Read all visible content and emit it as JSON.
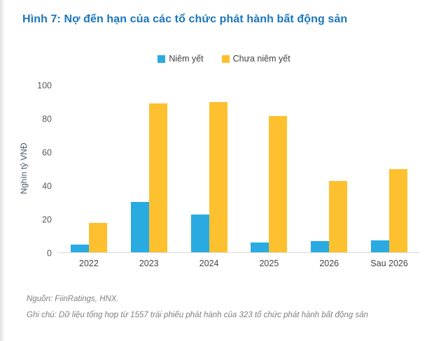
{
  "title": "Hình 7: Nợ đến hạn của các tổ chức phát hành bất động sản",
  "colors": {
    "title": "#1b75bc",
    "listed_series": "#29abe2",
    "unlisted_series": "#fdc02f",
    "axis_line": "#d9d9d9"
  },
  "chart_data": {
    "type": "bar",
    "categories": [
      "2022",
      "2023",
      "2024",
      "2025",
      "2026",
      "Sau 2026"
    ],
    "series": [
      {
        "name": "Niêm yết",
        "color": "#29abe2",
        "values": [
          4.5,
          30,
          22.5,
          6,
          6.5,
          7
        ]
      },
      {
        "name": "Chưa niêm yết",
        "color": "#fdc02f",
        "values": [
          17.5,
          89,
          90,
          81.5,
          42.5,
          50
        ]
      }
    ],
    "xlabel": "",
    "ylabel": "Nghìn tỷ VNĐ",
    "ylim": [
      0,
      100
    ],
    "yticks": [
      0,
      20,
      40,
      60,
      80,
      100
    ],
    "grid": false,
    "legend_position": "top-center"
  },
  "footer": {
    "source": "Nguồn: FiinRatings, HNX.",
    "note": "Ghi chú: Dữ liệu tổng hợp từ 1557 trái phiếu phát hành của 323 tổ chức phát hành bất động sản"
  }
}
